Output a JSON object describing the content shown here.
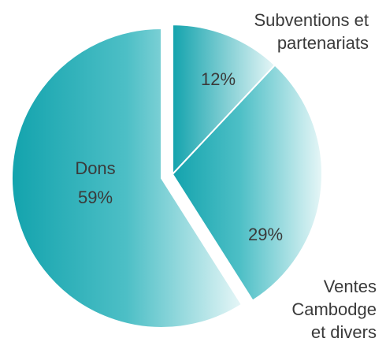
{
  "chart_data": {
    "type": "pie",
    "title": "",
    "slices": [
      {
        "label_lines": [
          "Dons"
        ],
        "percent_label": "59%",
        "value": 59,
        "exploded": false
      },
      {
        "label_lines": [
          "Subventions et",
          "partenariats"
        ],
        "percent_label": "12%",
        "value": 12,
        "exploded": true
      },
      {
        "label_lines": [
          "Ventes",
          "Cambodge",
          "et divers"
        ],
        "percent_label": "29%",
        "value": 29,
        "exploded": true
      }
    ],
    "colors": {
      "dark": "#13a3ad",
      "mid": "#4dbfc6",
      "light": "#e6f6f7"
    }
  }
}
